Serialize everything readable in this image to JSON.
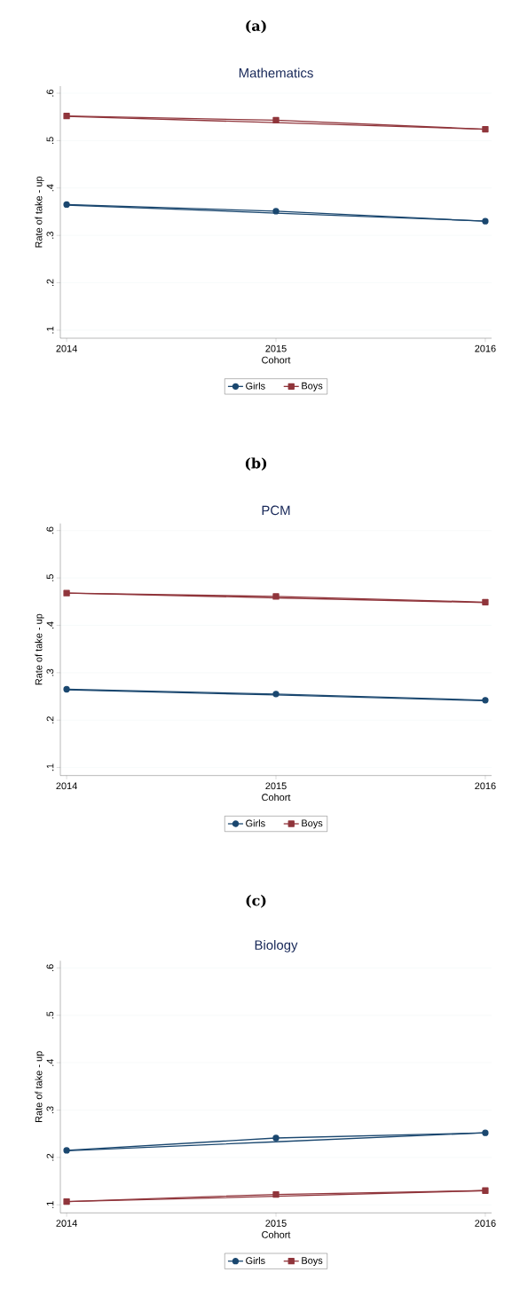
{
  "chart_data": [
    {
      "type": "line",
      "title": "(a)",
      "subtitle": "Mathematics",
      "xlabel": "Cohort",
      "ylabel": "Rate of take - up",
      "x": [
        2014,
        2015,
        2016
      ],
      "xlim": [
        2013.97,
        2016.03
      ],
      "xticks": [
        2014,
        2015,
        2016
      ],
      "ylim": [
        0.083,
        0.615
      ],
      "yticks": [
        {
          "value": 0.1,
          "label": ".1"
        },
        {
          "value": 0.2,
          "label": ".2"
        },
        {
          "value": 0.3,
          "label": ".3"
        },
        {
          "value": 0.4,
          "label": ".4"
        },
        {
          "value": 0.5,
          "label": ".5"
        },
        {
          "value": 0.6,
          "label": ".6"
        }
      ],
      "grid": "y",
      "legend": "bottom",
      "series": [
        {
          "name": "Girls",
          "color": "#1a476f",
          "marker": "circle",
          "values": [
            0.365,
            0.351,
            0.33
          ]
        },
        {
          "name": "Boys",
          "color": "#90353b",
          "marker": "square",
          "values": [
            0.552,
            0.543,
            0.524
          ]
        },
        {
          "color": "#1a476f",
          "marker": "none",
          "values": [
            0.364,
            0.347,
            0.33
          ]
        },
        {
          "color": "#90353b",
          "marker": "none",
          "values": [
            0.551,
            0.538,
            0.524
          ]
        }
      ]
    },
    {
      "type": "line",
      "title": "(b)",
      "subtitle": "PCM",
      "xlabel": "Cohort",
      "ylabel": "Rate of take - up",
      "x": [
        2014,
        2015,
        2016
      ],
      "xlim": [
        2013.97,
        2016.03
      ],
      "xticks": [
        2014,
        2015,
        2016
      ],
      "ylim": [
        0.083,
        0.615
      ],
      "yticks": [
        {
          "value": 0.1,
          "label": ".1"
        },
        {
          "value": 0.2,
          "label": ".2"
        },
        {
          "value": 0.3,
          "label": ".3"
        },
        {
          "value": 0.4,
          "label": ".4"
        },
        {
          "value": 0.5,
          "label": ".5"
        },
        {
          "value": 0.6,
          "label": ".6"
        }
      ],
      "grid": "y",
      "legend": "bottom",
      "series": [
        {
          "name": "Girls",
          "color": "#1a476f",
          "marker": "circle",
          "values": [
            0.265,
            0.255,
            0.242
          ]
        },
        {
          "name": "Boys",
          "color": "#90353b",
          "marker": "square",
          "values": [
            0.468,
            0.461,
            0.449
          ]
        },
        {
          "color": "#1a476f",
          "marker": "none",
          "values": [
            0.264,
            0.253,
            0.241
          ]
        },
        {
          "color": "#90353b",
          "marker": "none",
          "values": [
            0.468,
            0.458,
            0.448
          ]
        }
      ]
    },
    {
      "type": "line",
      "title": "(c)",
      "subtitle": "Biology",
      "xlabel": "Cohort",
      "ylabel": "Rate of take - up",
      "x": [
        2014,
        2015,
        2016
      ],
      "xlim": [
        2013.97,
        2016.03
      ],
      "xticks": [
        2014,
        2015,
        2016
      ],
      "ylim": [
        0.083,
        0.615
      ],
      "yticks": [
        {
          "value": 0.1,
          "label": ".1"
        },
        {
          "value": 0.2,
          "label": ".2"
        },
        {
          "value": 0.3,
          "label": ".3"
        },
        {
          "value": 0.4,
          "label": ".4"
        },
        {
          "value": 0.5,
          "label": ".5"
        },
        {
          "value": 0.6,
          "label": ".6"
        }
      ],
      "grid": "y",
      "legend": "bottom",
      "series": [
        {
          "name": "Girls",
          "color": "#1a476f",
          "marker": "circle",
          "values": [
            0.215,
            0.241,
            0.252
          ]
        },
        {
          "name": "Boys",
          "color": "#90353b",
          "marker": "square",
          "values": [
            0.107,
            0.122,
            0.13
          ]
        },
        {
          "color": "#1a476f",
          "marker": "none",
          "values": [
            0.214,
            0.233,
            0.252
          ]
        },
        {
          "color": "#90353b",
          "marker": "none",
          "values": [
            0.107,
            0.118,
            0.13
          ]
        }
      ]
    }
  ]
}
